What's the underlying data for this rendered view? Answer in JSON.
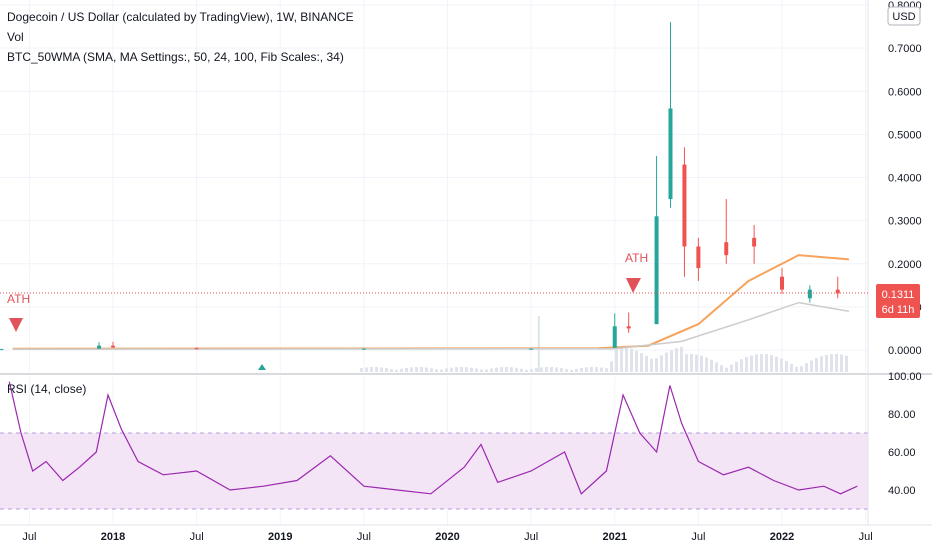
{
  "header": {
    "title_line": "Dogecoin / US Dollar (calculated by TradingView), 1W, BINANCE",
    "vol_label": "Vol",
    "indicator_line": "BTC_50WMA (SMA, MA Settings:, 50, 24, 100, Fib Scales:, 34)"
  },
  "price_axis": {
    "currency_badge": "USD",
    "ticks": [
      "0.8000",
      "0.7000",
      "0.6000",
      "0.5000",
      "0.4000",
      "0.3000",
      "0.2000",
      "0.1000",
      "0.0000"
    ],
    "last_price_label": "0.1311",
    "countdown_label": "6d 11h"
  },
  "rsi_panel": {
    "label": "RSI (14, close)",
    "ticks": [
      "100.00",
      "80.00",
      "60.00",
      "40.00"
    ]
  },
  "x_axis": {
    "ticks": [
      "Jul",
      "2018",
      "Jul",
      "2019",
      "Jul",
      "2020",
      "Jul",
      "2021",
      "Jul",
      "2022",
      "Jul"
    ]
  },
  "annotations": {
    "ath_left": "ATH",
    "ath_right": "ATH"
  },
  "colors": {
    "up": "#26a69a",
    "down": "#ef5350",
    "orange_ma": "#f7a35c",
    "gray_ma": "#cccccc",
    "rsi_line": "#9c27b0",
    "rsi_band": "#f3e5f5",
    "ath_marker": "#e0535a",
    "last_price_bg": "#ef5350"
  },
  "chart_data": [
    {
      "type": "candlestick",
      "title": "Dogecoin / US Dollar (calculated by TradingView), 1W, BINANCE",
      "ylim": [
        0,
        0.8
      ],
      "x_range": [
        "2017-05",
        "2022-07"
      ],
      "last_price": 0.1311,
      "candles_approx": [
        {
          "date": "2017-05",
          "open": 0.002,
          "high": 0.003,
          "low": 0.001,
          "close": 0.002
        },
        {
          "date": "2017-12",
          "open": 0.003,
          "high": 0.018,
          "low": 0.003,
          "close": 0.01
        },
        {
          "date": "2018-01",
          "open": 0.01,
          "high": 0.019,
          "low": 0.005,
          "close": 0.006
        },
        {
          "date": "2018-07",
          "open": 0.004,
          "high": 0.006,
          "low": 0.002,
          "close": 0.003
        },
        {
          "date": "2019-07",
          "open": 0.003,
          "high": 0.004,
          "low": 0.002,
          "close": 0.003
        },
        {
          "date": "2020-07",
          "open": 0.002,
          "high": 0.004,
          "low": 0.002,
          "close": 0.003
        },
        {
          "date": "2021-01",
          "open": 0.005,
          "high": 0.085,
          "low": 0.005,
          "close": 0.055
        },
        {
          "date": "2021-02",
          "open": 0.055,
          "high": 0.087,
          "low": 0.04,
          "close": 0.05
        },
        {
          "date": "2021-04",
          "open": 0.06,
          "high": 0.45,
          "low": 0.06,
          "close": 0.31
        },
        {
          "date": "2021-05",
          "open": 0.35,
          "high": 0.76,
          "low": 0.33,
          "close": 0.56
        },
        {
          "date": "2021-06",
          "open": 0.43,
          "high": 0.47,
          "low": 0.17,
          "close": 0.24
        },
        {
          "date": "2021-07",
          "open": 0.24,
          "high": 0.26,
          "low": 0.16,
          "close": 0.19
        },
        {
          "date": "2021-09",
          "open": 0.25,
          "high": 0.35,
          "low": 0.2,
          "close": 0.22
        },
        {
          "date": "2021-11",
          "open": 0.26,
          "high": 0.29,
          "low": 0.2,
          "close": 0.24
        },
        {
          "date": "2022-01",
          "open": 0.17,
          "high": 0.19,
          "low": 0.13,
          "close": 0.14
        },
        {
          "date": "2022-03",
          "open": 0.12,
          "high": 0.15,
          "low": 0.11,
          "close": 0.14
        },
        {
          "date": "2022-05",
          "open": 0.14,
          "high": 0.17,
          "low": 0.12,
          "close": 0.1311
        }
      ],
      "moving_averages": [
        {
          "name": "orange",
          "points": [
            [
              2017.4,
              0.003
            ],
            [
              2020.9,
              0.004
            ],
            [
              2021.2,
              0.01
            ],
            [
              2021.5,
              0.06
            ],
            [
              2021.8,
              0.16
            ],
            [
              2022.1,
              0.22
            ],
            [
              2022.4,
              0.21
            ]
          ]
        },
        {
          "name": "gray",
          "points": [
            [
              2017.4,
              0.002
            ],
            [
              2021.0,
              0.003
            ],
            [
              2021.4,
              0.02
            ],
            [
              2021.8,
              0.07
            ],
            [
              2022.1,
              0.11
            ],
            [
              2022.4,
              0.09
            ]
          ]
        }
      ]
    },
    {
      "type": "line",
      "title": "RSI (14, close)",
      "ylim": [
        25,
        100
      ],
      "x_range": [
        "2017-05",
        "2022-07"
      ],
      "series": [
        {
          "name": "RSI (14, close)",
          "points": [
            [
              2017.38,
              97
            ],
            [
              2017.45,
              70
            ],
            [
              2017.52,
              50
            ],
            [
              2017.6,
              55
            ],
            [
              2017.7,
              45
            ],
            [
              2017.8,
              52
            ],
            [
              2017.9,
              60
            ],
            [
              2017.97,
              90
            ],
            [
              2018.05,
              72
            ],
            [
              2018.15,
              55
            ],
            [
              2018.3,
              48
            ],
            [
              2018.5,
              50
            ],
            [
              2018.7,
              40
            ],
            [
              2018.9,
              42
            ],
            [
              2019.1,
              45
            ],
            [
              2019.3,
              58
            ],
            [
              2019.5,
              42
            ],
            [
              2019.7,
              40
            ],
            [
              2019.9,
              38
            ],
            [
              2020.1,
              52
            ],
            [
              2020.2,
              64
            ],
            [
              2020.3,
              44
            ],
            [
              2020.5,
              50
            ],
            [
              2020.7,
              60
            ],
            [
              2020.8,
              38
            ],
            [
              2020.95,
              50
            ],
            [
              2021.05,
              90
            ],
            [
              2021.15,
              70
            ],
            [
              2021.25,
              60
            ],
            [
              2021.33,
              95
            ],
            [
              2021.4,
              75
            ],
            [
              2021.5,
              55
            ],
            [
              2021.65,
              48
            ],
            [
              2021.8,
              52
            ],
            [
              2021.95,
              45
            ],
            [
              2022.1,
              40
            ],
            [
              2022.25,
              42
            ],
            [
              2022.35,
              38
            ],
            [
              2022.45,
              42
            ]
          ]
        }
      ]
    }
  ]
}
